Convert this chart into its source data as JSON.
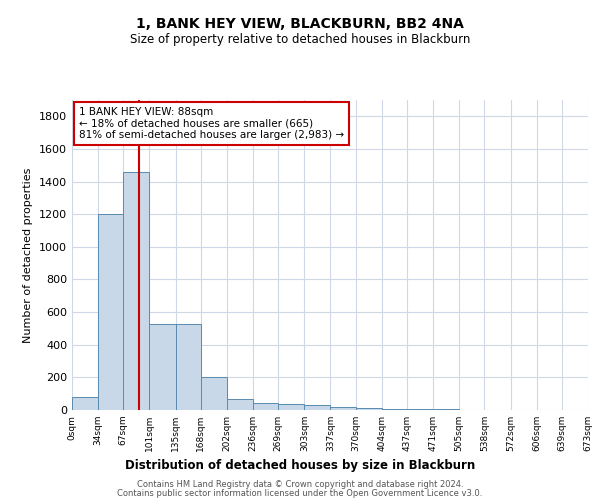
{
  "title": "1, BANK HEY VIEW, BLACKBURN, BB2 4NA",
  "subtitle": "Size of property relative to detached houses in Blackburn",
  "xlabel": "Distribution of detached houses by size in Blackburn",
  "ylabel": "Number of detached properties",
  "bar_values": [
    80,
    1200,
    1460,
    530,
    530,
    200,
    65,
    45,
    35,
    30,
    20,
    15,
    5,
    5,
    5,
    3,
    2,
    1,
    1,
    1
  ],
  "bin_edges": [
    0,
    34,
    67,
    101,
    135,
    168,
    202,
    236,
    269,
    303,
    337,
    370,
    404,
    437,
    471,
    505,
    538,
    572,
    606,
    639,
    673
  ],
  "tick_labels": [
    "0sqm",
    "34sqm",
    "67sqm",
    "101sqm",
    "135sqm",
    "168sqm",
    "202sqm",
    "236sqm",
    "269sqm",
    "303sqm",
    "337sqm",
    "370sqm",
    "404sqm",
    "437sqm",
    "471sqm",
    "505sqm",
    "538sqm",
    "572sqm",
    "606sqm",
    "639sqm",
    "673sqm"
  ],
  "bar_color": "#c8d8e8",
  "bar_edge_color": "#5a8ab0",
  "vline_x": 88,
  "vline_color": "#cc0000",
  "annotation_text": "1 BANK HEY VIEW: 88sqm\n← 18% of detached houses are smaller (665)\n81% of semi-detached houses are larger (2,983) →",
  "annotation_box_color": "#cc0000",
  "ylim": [
    0,
    1900
  ],
  "yticks": [
    0,
    200,
    400,
    600,
    800,
    1000,
    1200,
    1400,
    1600,
    1800
  ],
  "footer1": "Contains HM Land Registry data © Crown copyright and database right 2024.",
  "footer2": "Contains public sector information licensed under the Open Government Licence v3.0.",
  "bg_color": "#ffffff",
  "grid_color": "#d0d8e8"
}
